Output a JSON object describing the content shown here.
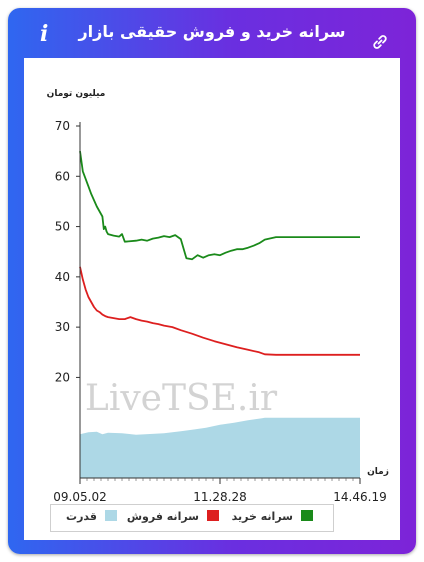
{
  "header": {
    "title": "سرانه خرید و فروش حقیقی بازار",
    "info_glyph": "i",
    "link_icon": "link-icon"
  },
  "watermark": "LiveTSE.ir",
  "chart_data": {
    "type": "line",
    "y_axis_title": "میلیون تومان",
    "x_axis_title": "زمان",
    "ylim": [
      0,
      72
    ],
    "y_ticks": [
      20,
      30,
      40,
      50,
      60,
      70
    ],
    "x_tick_labels": [
      "09.05.02",
      "11.28.28",
      "14.46.19"
    ],
    "grid": false,
    "legend_position": "bottom",
    "series": [
      {
        "name": "سرانه خرید",
        "color": "#1a8a1a",
        "type": "line",
        "x": [
          0,
          0.01,
          0.02,
          0.03,
          0.04,
          0.06,
          0.08,
          0.085,
          0.09,
          0.095,
          0.1,
          0.12,
          0.14,
          0.15,
          0.16,
          0.2,
          0.22,
          0.24,
          0.26,
          0.28,
          0.3,
          0.32,
          0.34,
          0.36,
          0.38,
          0.4,
          0.42,
          0.44,
          0.46,
          0.48,
          0.5,
          0.52,
          0.54,
          0.56,
          0.58,
          0.6,
          0.62,
          0.64,
          0.66,
          0.7,
          0.75,
          0.8,
          0.85,
          0.9,
          0.95,
          1.0
        ],
        "values": [
          65,
          61,
          59.5,
          58,
          56.5,
          54,
          52,
          49.5,
          50,
          49,
          48.5,
          48.2,
          48,
          48.5,
          47,
          47.2,
          47.4,
          47.2,
          47.6,
          47.8,
          48.1,
          47.9,
          48.3,
          47.5,
          43.7,
          43.5,
          44.3,
          43.8,
          44.3,
          44.5,
          44.3,
          44.8,
          45.2,
          45.5,
          45.5,
          45.8,
          46.2,
          46.7,
          47.4,
          47.9,
          47.9,
          47.9,
          47.9,
          47.9,
          47.9,
          47.9
        ]
      },
      {
        "name": "سرانه فروش",
        "color": "#dd1f1f",
        "type": "line",
        "x": [
          0,
          0.01,
          0.02,
          0.03,
          0.04,
          0.05,
          0.06,
          0.07,
          0.08,
          0.09,
          0.1,
          0.12,
          0.14,
          0.16,
          0.18,
          0.2,
          0.22,
          0.24,
          0.26,
          0.28,
          0.3,
          0.33,
          0.36,
          0.4,
          0.44,
          0.48,
          0.52,
          0.56,
          0.6,
          0.64,
          0.66,
          0.7,
          0.75,
          0.8,
          0.85,
          0.9,
          0.95,
          1.0
        ],
        "values": [
          42,
          39.5,
          37.5,
          36,
          35,
          34,
          33.3,
          33,
          32.5,
          32.2,
          32,
          31.8,
          31.6,
          31.6,
          32,
          31.6,
          31.3,
          31.1,
          30.8,
          30.6,
          30.3,
          30,
          29.4,
          28.7,
          27.9,
          27.2,
          26.6,
          26,
          25.5,
          25,
          24.6,
          24.5,
          24.5,
          24.5,
          24.5,
          24.5,
          24.5,
          24.5
        ]
      },
      {
        "name": "قدرت",
        "color": "#add8e6",
        "type": "area",
        "x": [
          0,
          0.03,
          0.06,
          0.08,
          0.1,
          0.15,
          0.2,
          0.3,
          0.33,
          0.36,
          0.4,
          0.45,
          0.5,
          0.55,
          0.6,
          0.65,
          0.66,
          0.7,
          0.8,
          0.9,
          1.0
        ],
        "values": [
          8.7,
          9.1,
          9.2,
          8.7,
          9.0,
          8.9,
          8.6,
          8.9,
          9.1,
          9.3,
          9.6,
          10.0,
          10.6,
          11.0,
          11.5,
          11.9,
          12.0,
          12.0,
          12.0,
          12.0,
          12.0
        ]
      }
    ]
  }
}
